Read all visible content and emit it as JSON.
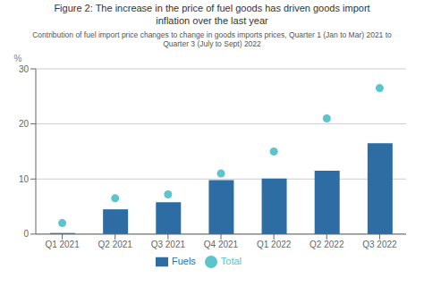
{
  "chart_data": {
    "type": "bar",
    "title": "Figure 2: The increase in the price of fuel goods has driven goods import\ninflation over the last year",
    "subtitle": "Contribution of fuel import price changes to change in goods imports prices, Quarter 1 (Jan to Mar) 2021 to\nQuarter 3 (July to Sept) 2022",
    "categories": [
      "Q1 2021",
      "Q2 2021",
      "Q3 2021",
      "Q4 2021",
      "Q1 2022",
      "Q2 2022",
      "Q3 2022"
    ],
    "series": [
      {
        "name": "Fuels",
        "type": "bar",
        "color": "#2E6DA4",
        "values": [
          0.2,
          4.5,
          5.8,
          9.8,
          10.1,
          11.5,
          16.5
        ]
      },
      {
        "name": "Total",
        "type": "scatter",
        "color": "#5BC4CC",
        "values": [
          2.0,
          6.5,
          7.2,
          11.0,
          15.0,
          21.0,
          26.5
        ]
      }
    ],
    "ylabel": "%",
    "ylim": [
      0,
      30
    ],
    "yticks": [
      0,
      10,
      20,
      30
    ],
    "grid": true,
    "legend": "bottom"
  }
}
